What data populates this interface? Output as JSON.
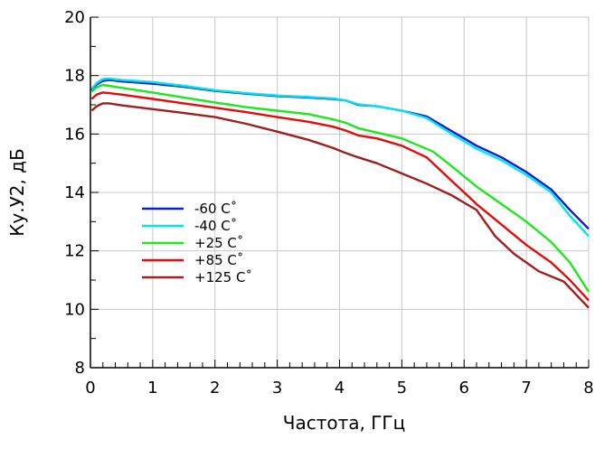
{
  "chart_data": {
    "type": "line",
    "title": "",
    "xlabel": "Частота, ГГц",
    "ylabel": "Ку.У2, дБ",
    "xlim": [
      0,
      8
    ],
    "ylim": [
      8,
      20
    ],
    "xticks": [
      0,
      1,
      2,
      3,
      4,
      5,
      6,
      7,
      8
    ],
    "xtick_labels": [
      "0",
      "1",
      "2",
      "3",
      "4",
      "5",
      "6",
      "7",
      "8"
    ],
    "yticks": [
      8,
      10,
      12,
      14,
      16,
      18,
      20
    ],
    "ytick_labels": [
      "8",
      "10",
      "12",
      "14",
      "16",
      "18",
      "20"
    ],
    "grid": true,
    "legend_position": "lower-left",
    "series": [
      {
        "name": "-60 C˚",
        "color": "#0a1fd6",
        "points": [
          [
            0.02,
            17.5
          ],
          [
            0.1,
            17.7
          ],
          [
            0.2,
            17.82
          ],
          [
            0.3,
            17.85
          ],
          [
            0.5,
            17.8
          ],
          [
            1.0,
            17.72
          ],
          [
            1.5,
            17.62
          ],
          [
            2.0,
            17.48
          ],
          [
            2.5,
            17.38
          ],
          [
            3.0,
            17.3
          ],
          [
            3.5,
            17.25
          ],
          [
            3.9,
            17.2
          ],
          [
            4.1,
            17.15
          ],
          [
            4.3,
            17.0
          ],
          [
            4.6,
            16.95
          ],
          [
            5.0,
            16.8
          ],
          [
            5.4,
            16.6
          ],
          [
            5.8,
            16.1
          ],
          [
            6.2,
            15.6
          ],
          [
            6.6,
            15.2
          ],
          [
            7.0,
            14.7
          ],
          [
            7.4,
            14.1
          ],
          [
            7.7,
            13.4
          ],
          [
            8.0,
            12.75
          ]
        ]
      },
      {
        "name": "-40 C˚",
        "color": "#00e5ee",
        "points": [
          [
            0.02,
            17.55
          ],
          [
            0.1,
            17.75
          ],
          [
            0.2,
            17.88
          ],
          [
            0.3,
            17.9
          ],
          [
            0.5,
            17.85
          ],
          [
            1.0,
            17.78
          ],
          [
            1.5,
            17.65
          ],
          [
            2.0,
            17.5
          ],
          [
            2.5,
            17.4
          ],
          [
            3.0,
            17.32
          ],
          [
            3.5,
            17.27
          ],
          [
            3.9,
            17.22
          ],
          [
            4.1,
            17.15
          ],
          [
            4.3,
            17.02
          ],
          [
            4.6,
            16.95
          ],
          [
            5.0,
            16.8
          ],
          [
            5.4,
            16.55
          ],
          [
            5.8,
            16.0
          ],
          [
            6.2,
            15.5
          ],
          [
            6.6,
            15.1
          ],
          [
            7.0,
            14.6
          ],
          [
            7.4,
            14.0
          ],
          [
            7.7,
            13.2
          ],
          [
            8.0,
            12.5
          ]
        ]
      },
      {
        "name": "+25 C˚",
        "color": "#1de81d",
        "points": [
          [
            0.02,
            17.45
          ],
          [
            0.1,
            17.6
          ],
          [
            0.2,
            17.68
          ],
          [
            0.3,
            17.65
          ],
          [
            0.5,
            17.58
          ],
          [
            1.0,
            17.42
          ],
          [
            1.5,
            17.25
          ],
          [
            2.0,
            17.08
          ],
          [
            2.5,
            16.92
          ],
          [
            3.0,
            16.8
          ],
          [
            3.5,
            16.68
          ],
          [
            3.9,
            16.5
          ],
          [
            4.1,
            16.38
          ],
          [
            4.3,
            16.2
          ],
          [
            4.6,
            16.05
          ],
          [
            5.0,
            15.85
          ],
          [
            5.5,
            15.4
          ],
          [
            5.8,
            14.9
          ],
          [
            6.2,
            14.2
          ],
          [
            6.6,
            13.6
          ],
          [
            7.0,
            13.0
          ],
          [
            7.4,
            12.3
          ],
          [
            7.7,
            11.6
          ],
          [
            8.0,
            10.6
          ]
        ]
      },
      {
        "name": "+85 C˚",
        "color": "#e50b0b",
        "points": [
          [
            0.02,
            17.2
          ],
          [
            0.1,
            17.35
          ],
          [
            0.2,
            17.42
          ],
          [
            0.3,
            17.4
          ],
          [
            0.5,
            17.35
          ],
          [
            1.0,
            17.2
          ],
          [
            1.5,
            17.05
          ],
          [
            2.0,
            16.9
          ],
          [
            2.5,
            16.75
          ],
          [
            3.0,
            16.58
          ],
          [
            3.5,
            16.42
          ],
          [
            3.9,
            16.25
          ],
          [
            4.1,
            16.12
          ],
          [
            4.3,
            15.95
          ],
          [
            4.6,
            15.85
          ],
          [
            5.0,
            15.6
          ],
          [
            5.4,
            15.2
          ],
          [
            5.8,
            14.4
          ],
          [
            6.2,
            13.6
          ],
          [
            6.6,
            12.9
          ],
          [
            7.0,
            12.2
          ],
          [
            7.4,
            11.6
          ],
          [
            7.7,
            11.0
          ],
          [
            8.0,
            10.3
          ]
        ]
      },
      {
        "name": "+125 C˚",
        "color": "#9e1f1f",
        "points": [
          [
            0.02,
            16.8
          ],
          [
            0.1,
            16.95
          ],
          [
            0.2,
            17.05
          ],
          [
            0.3,
            17.05
          ],
          [
            0.5,
            16.98
          ],
          [
            1.0,
            16.85
          ],
          [
            1.5,
            16.72
          ],
          [
            2.0,
            16.58
          ],
          [
            2.5,
            16.35
          ],
          [
            3.0,
            16.08
          ],
          [
            3.5,
            15.8
          ],
          [
            3.9,
            15.52
          ],
          [
            4.1,
            15.35
          ],
          [
            4.3,
            15.2
          ],
          [
            4.6,
            15.0
          ],
          [
            5.0,
            14.65
          ],
          [
            5.4,
            14.3
          ],
          [
            5.8,
            13.9
          ],
          [
            6.2,
            13.4
          ],
          [
            6.5,
            12.5
          ],
          [
            6.8,
            11.9
          ],
          [
            7.2,
            11.3
          ],
          [
            7.6,
            10.95
          ],
          [
            8.0,
            10.05
          ]
        ]
      }
    ]
  }
}
